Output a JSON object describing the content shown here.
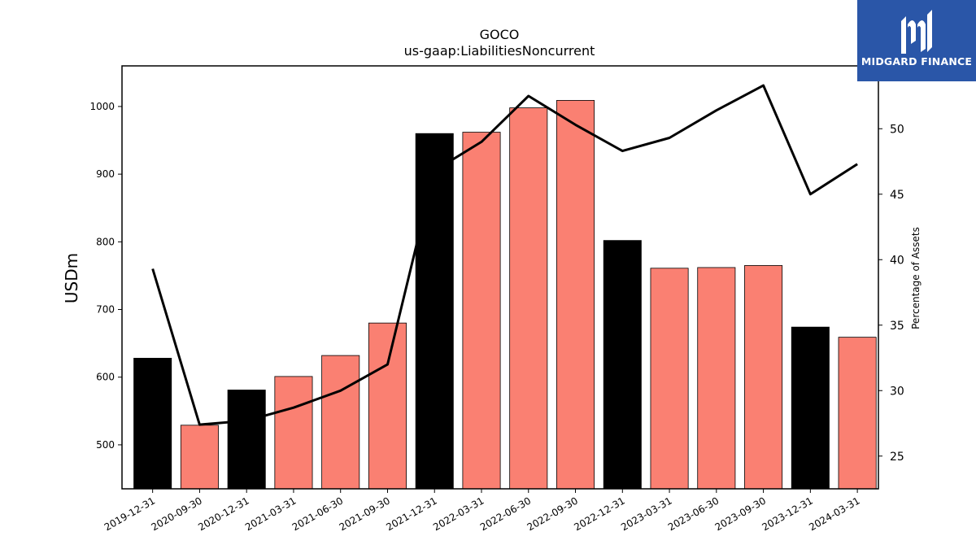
{
  "chart_data": {
    "type": "bar",
    "title": "GOCO",
    "subtitle": "us-gaap:LiabilitiesNoncurrent",
    "ylabel": "USDm",
    "y2label": "Percentage of Assets",
    "categories": [
      "2019-12-31",
      "2020-09-30",
      "2020-12-31",
      "2021-03-31",
      "2021-06-30",
      "2021-09-30",
      "2021-12-31",
      "2022-03-31",
      "2022-06-30",
      "2022-09-30",
      "2022-12-31",
      "2023-03-31",
      "2023-06-30",
      "2023-09-30",
      "2023-12-31",
      "2024-03-31"
    ],
    "values": [
      628,
      529,
      581,
      601,
      632,
      680,
      960,
      962,
      998,
      1009,
      802,
      761,
      762,
      765,
      674,
      659
    ],
    "bar_colors": [
      "#000000",
      "#fa8072",
      "#000000",
      "#fa8072",
      "#fa8072",
      "#fa8072",
      "#000000",
      "#fa8072",
      "#fa8072",
      "#fa8072",
      "#000000",
      "#fa8072",
      "#fa8072",
      "#fa8072",
      "#000000",
      "#fa8072"
    ],
    "line_values": [
      39.3,
      27.4,
      27.7,
      28.7,
      30.0,
      32.0,
      46.8,
      49.0,
      52.5,
      50.3,
      48.3,
      49.3,
      51.4,
      53.3,
      45.0,
      47.3
    ],
    "line_color": "#000000",
    "ylim": [
      435,
      1060
    ],
    "y2lim": [
      22.5,
      54.8
    ],
    "yticks": [
      500,
      600,
      700,
      800,
      900,
      1000
    ],
    "y2ticks": [
      25,
      30,
      35,
      40,
      45,
      50
    ],
    "grid": false
  },
  "logo": {
    "text": "MIDGARD FINANCE",
    "background": "#2a56a8"
  }
}
